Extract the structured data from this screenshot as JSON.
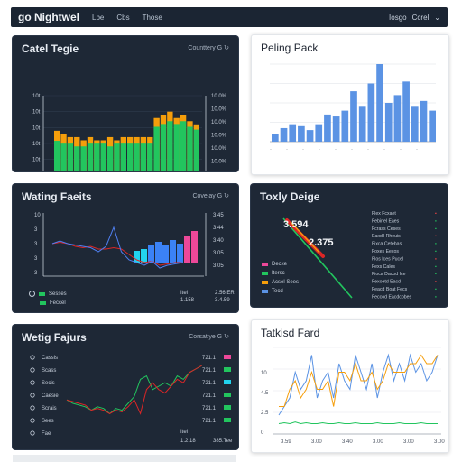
{
  "topbar": {
    "brand": "go Nightwel",
    "nav": [
      "Lbe",
      "Cbs",
      "Those"
    ],
    "right_items": [
      "Iosgo",
      "Ccrel"
    ]
  },
  "cards": {
    "c1": {
      "title": "Catel Tegie",
      "subtitle": "Counttery G",
      "y_ticks": [
        "10t",
        "10t",
        "10t",
        "10t",
        "10t",
        "10t",
        "10t"
      ],
      "right_labels": [
        "10.0%",
        "10.0%",
        "10.0%",
        "10.0%",
        "10.0%",
        "10.0%",
        "10.0%",
        "10.0%"
      ]
    },
    "c2": {
      "title": "Peling Pack"
    },
    "c3": {
      "title": "Wating Faeits",
      "subtitle": "Covelay G",
      "y_ticks": [
        "10",
        "3",
        "3",
        "3",
        "3"
      ],
      "right_labels": [
        "3.45",
        "3.44",
        "3.40",
        "3.05",
        "3.05"
      ],
      "legend": [
        "Sesses",
        "Feccel"
      ],
      "footer": [
        "Itel",
        "1.158"
      ],
      "footer_right": [
        "2.56 ER",
        "3.4.59"
      ]
    },
    "c4": {
      "title": "Toxly Deige",
      "values": [
        "3.594",
        "2.375"
      ],
      "legend": [
        "Decke",
        "Itersc",
        "Acsel Sees",
        "Tecd"
      ],
      "right_list": [
        "Flex Fcxaet",
        "Febinel Eaes",
        "Fcrass Ceses",
        "Eaxdll Rheuis",
        "Fixca Cetebas",
        "Foxes Eecos",
        "Flos Ices Pucel",
        "Fexs Cales",
        "Fioca Dacod Ice",
        "Fexoetd Eacd",
        "Feacd Boat Fecs",
        "Feccod Eacdcobes"
      ]
    },
    "c5": {
      "title": "Wetig Fajurs",
      "subtitle": "Corsatlye G",
      "left_labels": [
        "Cassis",
        "Scass",
        "Secis",
        "Caesie",
        "Scrais",
        "Sees",
        "Fae"
      ],
      "right_labels": [
        "721.1",
        "721.1",
        "721.1",
        "721.1",
        "721.1",
        "721.1"
      ],
      "footer": [
        "Itel",
        "1.2.18"
      ],
      "footer_right": "385.Tee"
    },
    "c6": {
      "title": "Tatkisd Fard",
      "y_ticks": [
        "10",
        "4.5",
        "2.5",
        "0"
      ],
      "x_ticks": [
        "3.59",
        "3.00",
        "3.40",
        "3.00",
        "3.00",
        "3.00"
      ]
    }
  },
  "colors": {
    "green": "#22c55e",
    "orange": "#f59e0b",
    "blue": "#5b93e4",
    "pink": "#ec4899",
    "red": "#dc2626",
    "cyan": "#22d3ee"
  },
  "chart_data": [
    {
      "type": "bar",
      "title": "Catel Tegie",
      "series": [
        {
          "values": [
            18,
            17,
            17,
            16,
            16,
            17,
            17,
            17,
            16,
            17,
            17,
            17,
            17,
            17,
            17,
            23,
            24,
            25,
            24,
            25,
            23,
            22
          ]
        },
        {
          "values": [
            19,
            18,
            17,
            17,
            16,
            17,
            16,
            16,
            17,
            16,
            17,
            17,
            17,
            17,
            17,
            23,
            24,
            25,
            23,
            24,
            22,
            21
          ]
        }
      ],
      "ylim": [
        0,
        30
      ]
    },
    {
      "type": "bar",
      "title": "Peling Pack",
      "values": [
        4,
        7,
        9,
        8,
        6,
        9,
        14,
        13,
        16,
        26,
        18,
        30,
        40,
        20,
        24,
        31,
        18,
        21,
        16
      ],
      "ylim": [
        0,
        40
      ]
    },
    {
      "type": "line",
      "title": "Wating Faeits",
      "series": [
        {
          "values": [
            3.0,
            3.1,
            3.0,
            2.95,
            2.9,
            2.85,
            2.7,
            2.9,
            3.6,
            2.7,
            2.4,
            2.3,
            2.2,
            2.35,
            2.1,
            2.2,
            2.25,
            2.3
          ]
        },
        {
          "values": [
            3.0,
            3.05,
            3.0,
            2.9,
            2.85,
            2.9,
            2.8,
            2.8,
            2.85,
            2.8,
            2.6,
            2.4,
            2.3,
            2.35,
            2.2,
            2.25,
            2.3,
            2.3
          ]
        }
      ]
    },
    {
      "type": "line",
      "title": "Wetig Fajurs",
      "series": [
        {
          "values": [
            2.6,
            2.55,
            2.5,
            2.45,
            2.3,
            2.35,
            2.3,
            2.2,
            2.3,
            2.25,
            2.4,
            2.6,
            2.2,
            2.9,
            3.1,
            2.9,
            2.8,
            3.0,
            3.2,
            3.1,
            3.4,
            3.5,
            3.6
          ]
        },
        {
          "values": [
            2.6,
            2.5,
            2.45,
            2.4,
            2.3,
            2.4,
            2.35,
            2.2,
            2.35,
            2.3,
            2.5,
            2.7,
            3.2,
            3.3,
            2.9,
            3.0,
            3.1,
            3.0,
            3.3,
            3.2,
            3.4,
            3.5,
            3.6
          ]
        }
      ]
    },
    {
      "type": "line",
      "title": "Tatkisd Fard",
      "series": [
        {
          "values": [
            2,
            3,
            4,
            7,
            5,
            6,
            9,
            4,
            6,
            7,
            4,
            8,
            6,
            5,
            9,
            7,
            5,
            8,
            4,
            7,
            9,
            6,
            8,
            6,
            9,
            7,
            8,
            6,
            7,
            9
          ]
        },
        {
          "values": [
            3,
            3,
            5,
            6,
            4,
            5,
            7,
            5,
            5,
            6,
            3,
            7,
            7,
            6,
            8,
            6,
            6,
            7,
            5,
            6,
            8,
            7,
            7,
            7,
            8,
            8,
            9,
            8,
            8,
            9
          ]
        },
        {
          "values": [
            1,
            1.1,
            1,
            1.2,
            1,
            1.1,
            1,
            1,
            1.1,
            1,
            1,
            1.1,
            1,
            1,
            1.1,
            1,
            1,
            1,
            1.1,
            1,
            1,
            1,
            1.1,
            1,
            1,
            1,
            1.1,
            1,
            1,
            1
          ]
        }
      ]
    }
  ]
}
